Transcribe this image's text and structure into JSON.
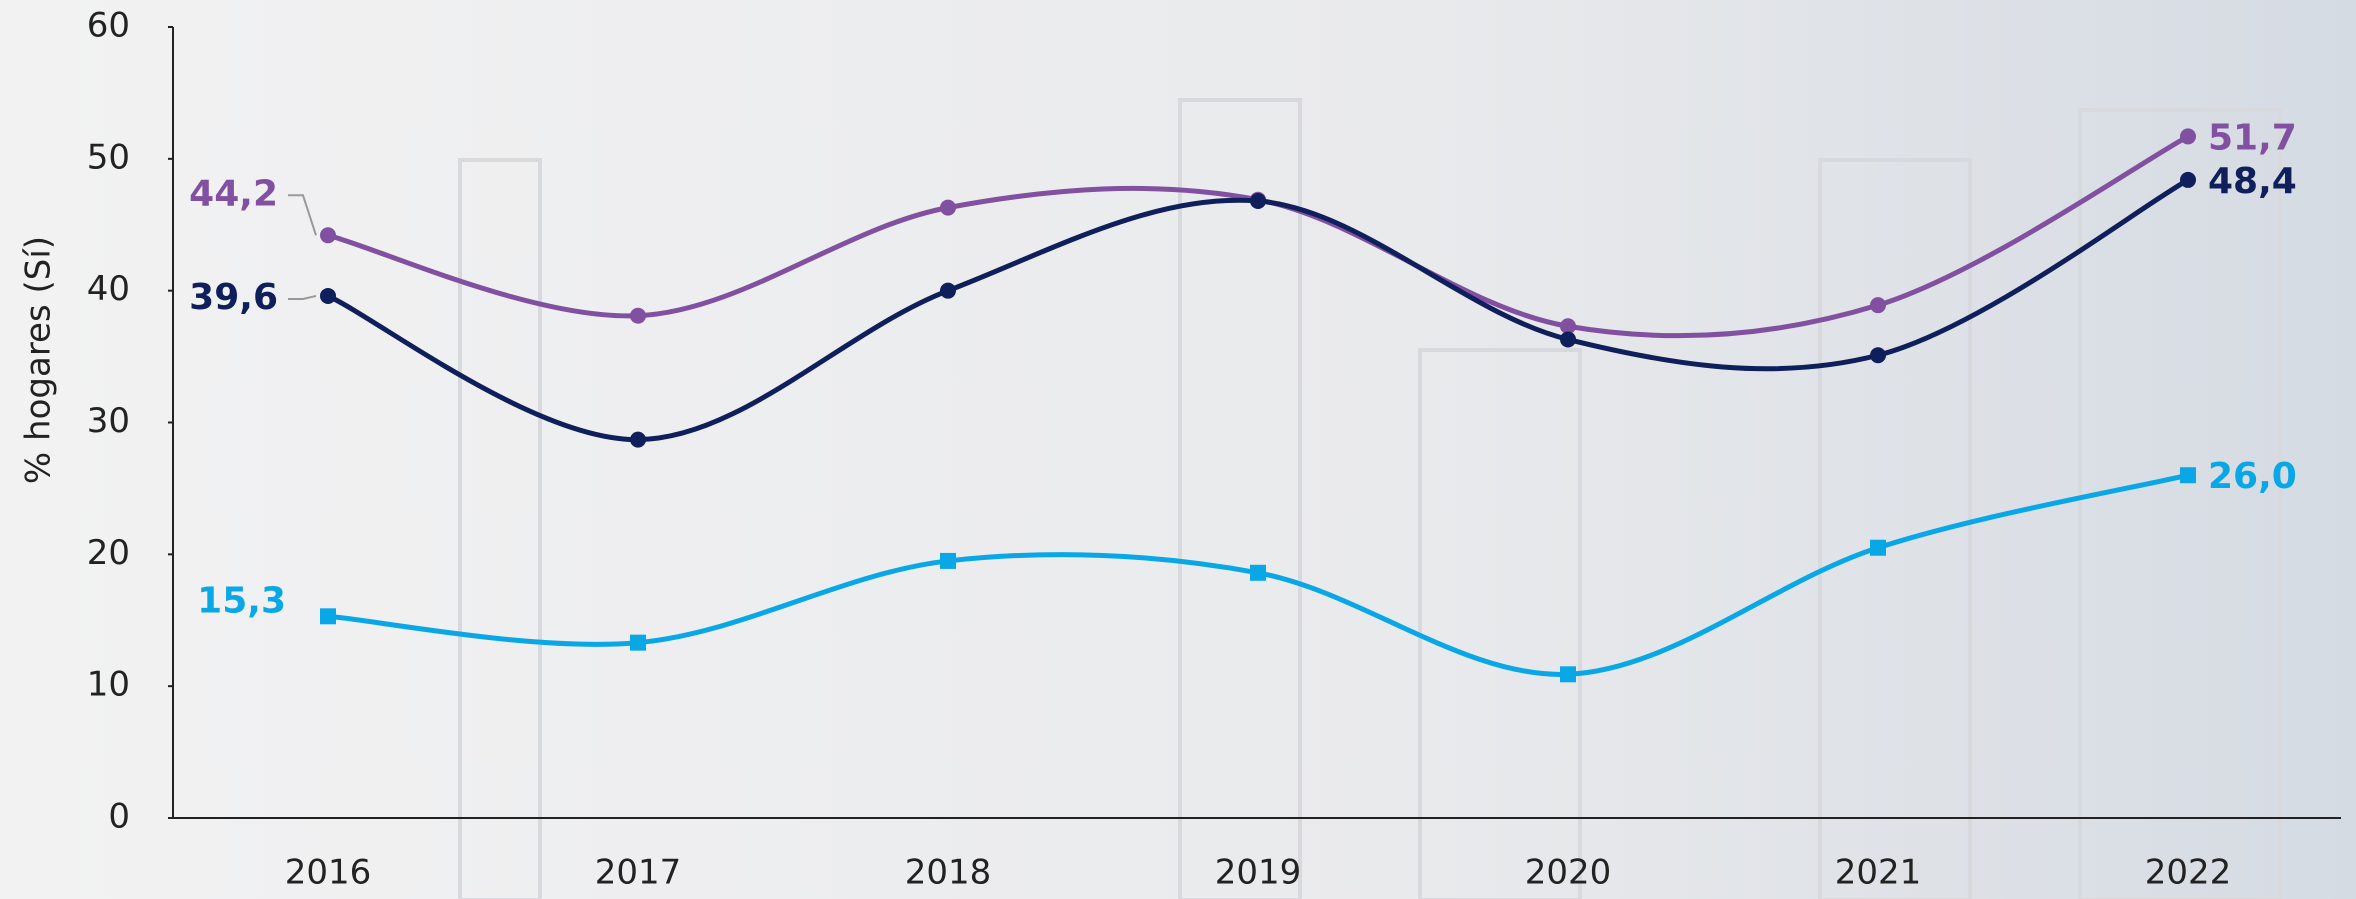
{
  "chart_data": {
    "type": "line",
    "y_label": "% hogares (Sí)",
    "categories": [
      "2016",
      "2017",
      "2018",
      "2019",
      "2020",
      "2021",
      "2022"
    ],
    "series": [
      {
        "color": "#8150a0",
        "marker": "circle",
        "values": [
          44.2,
          38.1,
          46.3,
          46.9,
          37.3,
          38.9,
          51.7
        ],
        "value_labels": [
          "44,2",
          null,
          null,
          null,
          null,
          null,
          "51,7"
        ]
      },
      {
        "color": "#0e1f5b",
        "marker": "circle",
        "values": [
          39.6,
          28.7,
          40.0,
          46.8,
          36.3,
          35.1,
          48.4
        ],
        "value_labels": [
          "39,6",
          null,
          null,
          null,
          null,
          null,
          "48,4"
        ]
      },
      {
        "color": "#0aa7e6",
        "marker": "square",
        "values": [
          15.3,
          13.3,
          19.5,
          18.6,
          10.9,
          20.5,
          26.0
        ],
        "value_labels": [
          "15,3",
          null,
          null,
          null,
          null,
          null,
          "26,0"
        ]
      }
    ],
    "ylim": [
      0,
      60
    ],
    "yticks": [
      0,
      10,
      20,
      30,
      40,
      50,
      60
    ],
    "grid": false
  }
}
